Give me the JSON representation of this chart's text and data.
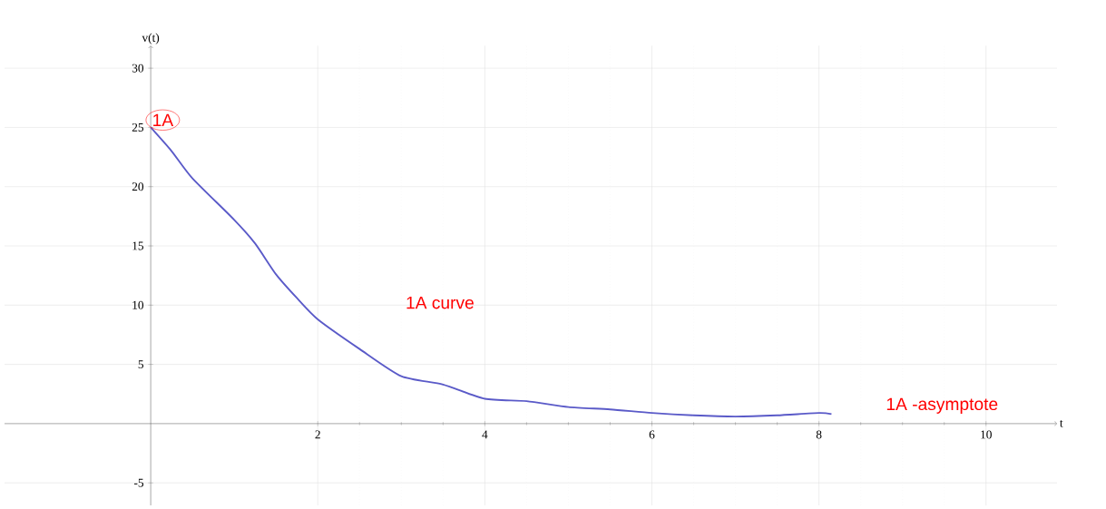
{
  "chart_data": {
    "type": "line",
    "xlabel": "t",
    "ylabel": "v(t)",
    "xlim": [
      -1.75,
      10.85
    ],
    "ylim": [
      -6.9,
      31.9
    ],
    "xticks": [
      2,
      4,
      6,
      8,
      10
    ],
    "yticks": [
      -5,
      5,
      10,
      15,
      20,
      25,
      30
    ],
    "grid": true,
    "x": [
      0,
      0.25,
      0.5,
      1,
      1.25,
      1.5,
      1.75,
      2,
      2.5,
      3,
      3.5,
      4,
      4.5,
      5,
      5.5,
      6,
      6.5,
      7,
      7.5,
      8,
      8.15
    ],
    "series": [
      {
        "color": "#5a5ac8",
        "values": [
          25,
          23,
          20.7,
          17.2,
          15.2,
          12.6,
          10.6,
          8.8,
          6.3,
          4,
          3.3,
          2.1,
          1.9,
          1.4,
          1.2,
          0.9,
          0.7,
          0.6,
          0.7,
          0.9,
          0.8
        ]
      }
    ],
    "annotations": [
      {
        "text": "1A",
        "x": 0,
        "y": 25
      },
      "1A curve",
      "1A -asymptote"
    ]
  }
}
